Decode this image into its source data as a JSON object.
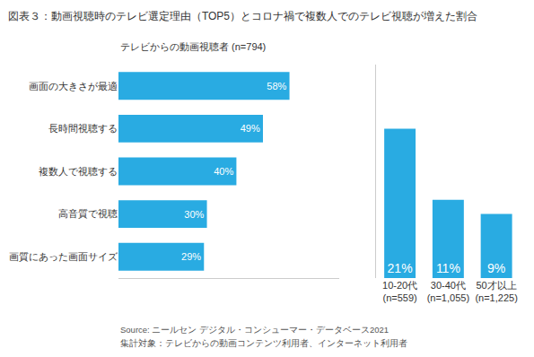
{
  "chart_data": [
    {
      "type": "bar",
      "title": "図表３：動画視聴時のテレビ選定理由（TOP5）とコロナ禍で複数人でのテレビ視聴が増えた割合",
      "subtitle": "テレビからの動画視聴者 (n=794)",
      "annotations": [
        "Source: ニールセン デジタル・コンシューマー・データベース2021",
        "集計対象：テレビからの動画コンテンツ利用者、インターネット利用者"
      ],
      "orientation": "horizontal",
      "categories": [
        "画面の大きさが最適",
        "長時間視聴する",
        "複数人で視聴する",
        "高音質で視聴",
        "画質にあった画面サイズ"
      ],
      "values": [
        58,
        49,
        40,
        30,
        29
      ],
      "value_labels": [
        "58%",
        "49%",
        "40%",
        "30%",
        "29%"
      ],
      "data_labels": true,
      "color": "#29ABE2",
      "xlim": [
        0,
        75
      ],
      "tick_labels": "y",
      "grid": false
    },
    {
      "type": "bar",
      "categories": [
        "10-20代\n(n=559)",
        "30-40代\n(n=1,055)",
        "50才以上\n(n=1,225)"
      ],
      "values": [
        21,
        11,
        9
      ],
      "value_labels": [
        "21%",
        "11%",
        "9%"
      ],
      "data_labels": true,
      "color": "#29ABE2",
      "ylim": [
        0,
        30
      ],
      "tick_labels": "x",
      "grid": false
    }
  ]
}
